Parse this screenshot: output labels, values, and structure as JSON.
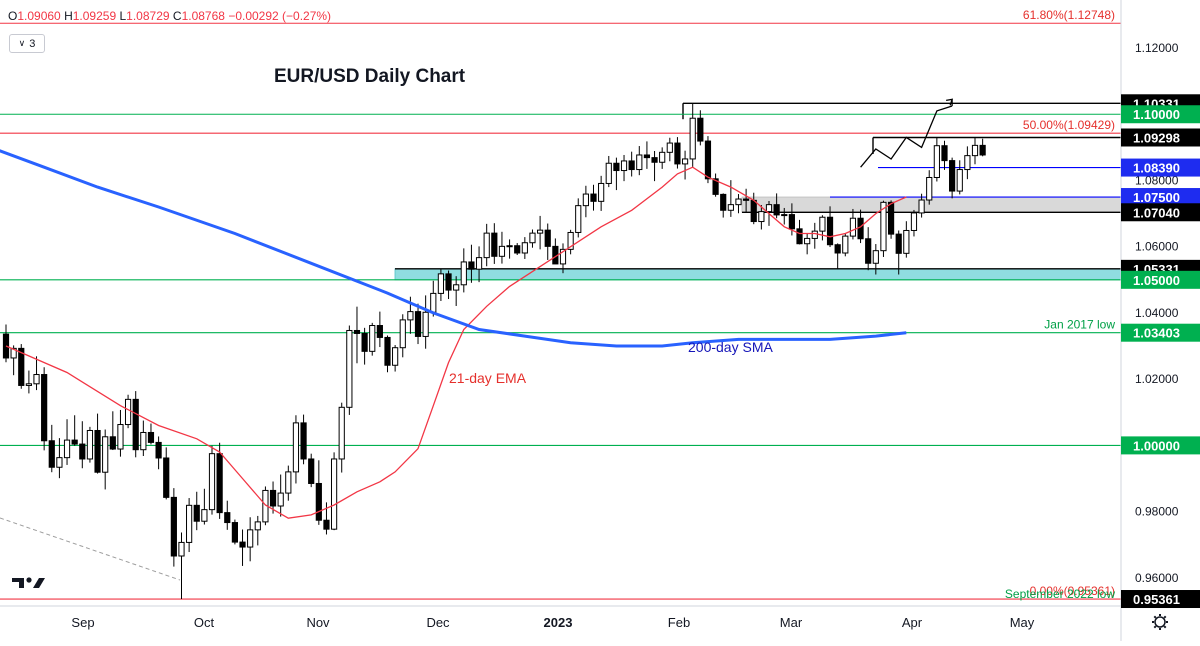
{
  "ohlc": {
    "o_label": "O",
    "o": "1.09060",
    "h_label": "H",
    "h": "1.09259",
    "l_label": "L",
    "l": "1.08729",
    "c_label": "C",
    "c": "1.08768",
    "change": "−0.00292 (−0.27%)"
  },
  "indicator_badge": "3",
  "chart_data": {
    "type": "candlestick",
    "title": "EUR/USD Daily Chart",
    "x_labels": [
      "Sep",
      "Oct",
      "Nov",
      "Dec",
      "2023",
      "Feb",
      "Mar",
      "Apr",
      "May"
    ],
    "y_ticks": [
      "1.12000",
      "1.10000",
      "1.08000",
      "1.06000",
      "1.04000",
      "1.02000",
      "1.00000",
      "0.98000",
      "0.96000"
    ],
    "ylim": [
      0.9515,
      1.1345
    ],
    "horizontal_levels": [
      {
        "value": 1.12748,
        "color": "#f23645",
        "label": "61.80%(1.12748)"
      },
      {
        "value": 1.10331,
        "color": "#000000",
        "box": "1.10331"
      },
      {
        "value": 1.1,
        "color": "#00b050",
        "box": "1.10000"
      },
      {
        "value": 1.09429,
        "color": "#f23645",
        "label": "50.00%(1.09429)"
      },
      {
        "value": 1.09298,
        "color": "#000000",
        "box": "1.09298"
      },
      {
        "value": 1.0839,
        "color": "#0000ff",
        "box": "1.08390"
      },
      {
        "value": 1.075,
        "color": "#0000ff",
        "box": "1.07500"
      },
      {
        "value": 1.0704,
        "color": "#000000",
        "box": "1.07040"
      },
      {
        "value": 1.05331,
        "color": "#000000",
        "box": "1.05331"
      },
      {
        "value": 1.05,
        "color": "#00b050",
        "box": "1.05000"
      },
      {
        "value": 1.03403,
        "color": "#00b050",
        "label": "Jan 2017 low",
        "box": "1.03403"
      },
      {
        "value": 1.0,
        "color": "#00b050",
        "box": "1.00000"
      },
      {
        "value": 0.95361,
        "color": "#f23645",
        "label": "0.00%(0.95361)",
        "box": "0.95361"
      }
    ],
    "bottom_label": "September 2022 low",
    "zones": [
      {
        "from": 1.0704,
        "to": 1.075,
        "color": "#d9d9d9"
      },
      {
        "from": 1.05,
        "to": 1.05331,
        "color": "#8fdde0"
      }
    ],
    "annotations": {
      "ema": "21-day EMA",
      "sma": "200-day SMA"
    },
    "series": [
      {
        "name": "21-day EMA",
        "color": "#f23645",
        "points": [
          [
            0,
            1.03
          ],
          [
            8,
            1.022
          ],
          [
            15,
            1.012
          ],
          [
            20,
            1.006
          ],
          [
            25,
            1.002
          ],
          [
            28,
            0.998
          ],
          [
            31,
            0.99
          ],
          [
            34,
            0.982
          ],
          [
            37,
            0.978
          ],
          [
            40,
            0.979
          ],
          [
            43,
            0.982
          ],
          [
            46,
            0.986
          ],
          [
            49,
            0.989
          ],
          [
            51,
            0.992
          ],
          [
            54,
            0.999
          ],
          [
            56,
            1.012
          ],
          [
            58,
            1.025
          ],
          [
            60,
            1.035
          ],
          [
            63,
            1.042
          ],
          [
            66,
            1.048
          ],
          [
            70,
            1.054
          ],
          [
            74,
            1.06
          ],
          [
            78,
            1.066
          ],
          [
            82,
            1.071
          ],
          [
            86,
            1.078
          ],
          [
            88,
            1.082
          ],
          [
            90,
            1.084
          ],
          [
            92,
            1.081
          ],
          [
            95,
            1.078
          ],
          [
            98,
            1.074
          ],
          [
            100,
            1.07
          ],
          [
            102,
            1.066
          ],
          [
            104,
            1.064
          ],
          [
            106,
            1.064
          ],
          [
            108,
            1.063
          ],
          [
            110,
            1.064
          ],
          [
            112,
            1.066
          ],
          [
            114,
            1.07
          ],
          [
            116,
            1.073
          ],
          [
            118,
            1.075
          ]
        ]
      },
      {
        "name": "200-day SMA",
        "color": "#2962ff",
        "points": [
          [
            -2,
            1.09
          ],
          [
            5,
            1.084
          ],
          [
            12,
            1.078
          ],
          [
            20,
            1.072
          ],
          [
            30,
            1.064
          ],
          [
            40,
            1.055
          ],
          [
            50,
            1.046
          ],
          [
            56,
            1.04
          ],
          [
            62,
            1.035
          ],
          [
            68,
            1.033
          ],
          [
            74,
            1.031
          ],
          [
            80,
            1.03
          ],
          [
            86,
            1.03
          ],
          [
            90,
            1.031
          ],
          [
            96,
            1.032
          ],
          [
            102,
            1.032
          ],
          [
            108,
            1.032
          ],
          [
            114,
            1.033
          ],
          [
            118,
            1.034
          ]
        ]
      }
    ],
    "projection_path": [
      [
        112,
        1.084
      ],
      [
        114,
        1.0895
      ],
      [
        116,
        1.0865
      ],
      [
        118,
        1.093
      ],
      [
        120,
        1.09
      ],
      [
        122,
        1.101
      ],
      [
        124,
        1.1025
      ]
    ],
    "projection_end": [
      124,
      1.1045
    ],
    "ohlc": [
      [
        1.0336,
        1.0365,
        1.0251,
        1.0264
      ],
      [
        1.0264,
        1.0302,
        1.0212,
        1.0293
      ],
      [
        1.0293,
        1.0306,
        1.0171,
        1.0181
      ],
      [
        1.0181,
        1.0226,
        1.0157,
        1.0186
      ],
      [
        1.0186,
        1.0269,
        1.0167,
        1.0214
      ],
      [
        1.0214,
        1.0236,
        0.9985,
        1.0014
      ],
      [
        1.0014,
        1.0062,
        0.9919,
        0.9934
      ],
      [
        0.9934,
        1.0022,
        0.9901,
        0.9963
      ],
      [
        0.9963,
        1.0079,
        0.9941,
        1.0016
      ],
      [
        1.0016,
        1.0091,
        0.9999,
        1.0004
      ],
      [
        1.0004,
        1.0073,
        0.9931,
        0.9959
      ],
      [
        0.9959,
        1.0056,
        0.9948,
        1.0045
      ],
      [
        1.0045,
        1.0096,
        0.9915,
        0.9919
      ],
      [
        0.9919,
        1.0048,
        0.9867,
        1.0026
      ],
      [
        1.0026,
        1.0103,
        0.9986,
        0.9989
      ],
      [
        0.9989,
        1.0107,
        0.9966,
        1.0063
      ],
      [
        1.0063,
        1.0153,
        1.0052,
        1.0139
      ],
      [
        1.0139,
        1.0164,
        0.9964,
        0.9987
      ],
      [
        0.9987,
        1.0075,
        0.9968,
        1.0039
      ],
      [
        1.0039,
        1.0066,
        1.0003,
        1.0009
      ],
      [
        1.0009,
        1.0027,
        0.9928,
        0.9962
      ],
      [
        0.9962,
        0.9994,
        0.9837,
        0.9843
      ],
      [
        0.9843,
        0.9871,
        0.9634,
        0.9666
      ],
      [
        0.9666,
        0.9737,
        0.9536,
        0.9707
      ],
      [
        0.9707,
        0.9841,
        0.9678,
        0.9819
      ],
      [
        0.9819,
        0.986,
        0.9744,
        0.9771
      ],
      [
        0.9771,
        0.9869,
        0.9761,
        0.9806
      ],
      [
        0.9806,
        0.9999,
        0.9791,
        0.9975
      ],
      [
        0.9975,
        1.0008,
        0.9778,
        0.9797
      ],
      [
        0.9797,
        0.9833,
        0.9745,
        0.9767
      ],
      [
        0.9767,
        0.9776,
        0.9701,
        0.9708
      ],
      [
        0.9708,
        0.9746,
        0.9636,
        0.9693
      ],
      [
        0.9693,
        0.9783,
        0.965,
        0.9745
      ],
      [
        0.9745,
        0.9787,
        0.9698,
        0.9769
      ],
      [
        0.9769,
        0.9876,
        0.9759,
        0.9864
      ],
      [
        0.9864,
        0.9891,
        0.9794,
        0.9817
      ],
      [
        0.9817,
        0.9912,
        0.9785,
        0.9856
      ],
      [
        0.9856,
        0.9939,
        0.9833,
        0.992
      ],
      [
        0.992,
        1.0091,
        0.9885,
        1.0068
      ],
      [
        1.0068,
        1.0093,
        0.9943,
        0.9959
      ],
      [
        0.9959,
        0.9975,
        0.9874,
        0.9885
      ],
      [
        0.9885,
        0.9955,
        0.976,
        0.9774
      ],
      [
        0.9774,
        0.9828,
        0.9731,
        0.9747
      ],
      [
        0.9747,
        0.9979,
        0.9744,
        0.9959
      ],
      [
        0.9959,
        1.0129,
        0.9918,
        1.0115
      ],
      [
        1.0115,
        1.0362,
        1.0092,
        1.0347
      ],
      [
        1.0347,
        1.0419,
        1.0248,
        1.0338
      ],
      [
        1.0338,
        1.0355,
        1.0244,
        1.0284
      ],
      [
        1.0284,
        1.037,
        1.0271,
        1.0362
      ],
      [
        1.0362,
        1.0404,
        1.0297,
        1.0326
      ],
      [
        1.0326,
        1.0332,
        1.0221,
        1.0242
      ],
      [
        1.0242,
        1.0303,
        1.0223,
        1.0295
      ],
      [
        1.0295,
        1.0396,
        1.0266,
        1.0379
      ],
      [
        1.0379,
        1.0449,
        1.0337,
        1.0404
      ],
      [
        1.0404,
        1.0428,
        1.0306,
        1.0329
      ],
      [
        1.0329,
        1.0453,
        1.0292,
        1.0402
      ],
      [
        1.0402,
        1.0497,
        1.0389,
        1.0459
      ],
      [
        1.0459,
        1.0534,
        1.0436,
        1.0518
      ],
      [
        1.0518,
        1.0528,
        1.0442,
        1.0469
      ],
      [
        1.0469,
        1.0511,
        1.0421,
        1.0485
      ],
      [
        1.0485,
        1.0595,
        1.0462,
        1.0554
      ],
      [
        1.0554,
        1.0606,
        1.0491,
        1.0532
      ],
      [
        1.0532,
        1.0601,
        1.0493,
        1.0567
      ],
      [
        1.0567,
        1.0669,
        1.0541,
        1.0641
      ],
      [
        1.0641,
        1.0671,
        1.0548,
        1.0571
      ],
      [
        1.0571,
        1.0645,
        1.0549,
        1.0601
      ],
      [
        1.0601,
        1.0622,
        1.0564,
        1.0603
      ],
      [
        1.0603,
        1.0611,
        1.0575,
        1.0581
      ],
      [
        1.0581,
        1.0629,
        1.0563,
        1.0612
      ],
      [
        1.0612,
        1.0652,
        1.0597,
        1.0641
      ],
      [
        1.0641,
        1.0693,
        1.0592,
        1.065
      ],
      [
        1.065,
        1.067,
        1.056,
        1.0601
      ],
      [
        1.0601,
        1.0625,
        1.0548,
        1.0548
      ],
      [
        1.0548,
        1.061,
        1.052,
        1.0592
      ],
      [
        1.0592,
        1.0651,
        1.0577,
        1.0643
      ],
      [
        1.0643,
        1.0746,
        1.0628,
        1.0724
      ],
      [
        1.0724,
        1.0784,
        1.0689,
        1.0759
      ],
      [
        1.0759,
        1.0787,
        1.0709,
        1.0737
      ],
      [
        1.0737,
        1.0814,
        1.0708,
        1.0791
      ],
      [
        1.0791,
        1.0874,
        1.078,
        1.0852
      ],
      [
        1.0852,
        1.0869,
        1.0771,
        1.083
      ],
      [
        1.083,
        1.0877,
        1.0798,
        1.0859
      ],
      [
        1.0859,
        1.0887,
        1.0812,
        1.0833
      ],
      [
        1.0833,
        1.0904,
        1.0816,
        1.0877
      ],
      [
        1.0877,
        1.0918,
        1.0835,
        1.0869
      ],
      [
        1.0869,
        1.0889,
        1.0798,
        1.0855
      ],
      [
        1.0855,
        1.09,
        1.0835,
        1.0885
      ],
      [
        1.0885,
        1.0929,
        1.0858,
        1.0913
      ],
      [
        1.0913,
        1.0931,
        1.0836,
        1.085
      ],
      [
        1.085,
        1.089,
        1.0803,
        1.0865
      ],
      [
        1.0865,
        1.1033,
        1.0839,
        1.0988
      ],
      [
        1.0988,
        1.1012,
        1.0906,
        1.0919
      ],
      [
        1.0919,
        1.0934,
        1.0792,
        1.0805
      ],
      [
        1.0805,
        1.0821,
        1.0751,
        1.0758
      ],
      [
        1.0758,
        1.0761,
        1.0688,
        1.071
      ],
      [
        1.071,
        1.0801,
        1.069,
        1.0727
      ],
      [
        1.0727,
        1.0759,
        1.0701,
        1.0744
      ],
      [
        1.0744,
        1.0775,
        1.0705,
        1.074
      ],
      [
        1.074,
        1.0763,
        1.0668,
        1.0676
      ],
      [
        1.0676,
        1.0726,
        1.0652,
        1.0706
      ],
      [
        1.0706,
        1.0738,
        1.0663,
        1.0727
      ],
      [
        1.0727,
        1.0761,
        1.0686,
        1.0696
      ],
      [
        1.0696,
        1.0717,
        1.0667,
        1.0697
      ],
      [
        1.0697,
        1.0731,
        1.0634,
        1.0654
      ],
      [
        1.0654,
        1.0681,
        1.0607,
        1.0609
      ],
      [
        1.0609,
        1.0641,
        1.0577,
        1.0625
      ],
      [
        1.0625,
        1.0672,
        1.0594,
        1.0647
      ],
      [
        1.0647,
        1.0695,
        1.0619,
        1.0689
      ],
      [
        1.0689,
        1.0722,
        1.0599,
        1.0606
      ],
      [
        1.0606,
        1.061,
        1.0533,
        1.0581
      ],
      [
        1.0581,
        1.0641,
        1.0571,
        1.0632
      ],
      [
        1.0632,
        1.0714,
        1.0622,
        1.0686
      ],
      [
        1.0686,
        1.0712,
        1.0611,
        1.0624
      ],
      [
        1.0624,
        1.0659,
        1.0529,
        1.055
      ],
      [
        1.055,
        1.0608,
        1.0516,
        1.0588
      ],
      [
        1.0588,
        1.0739,
        1.0569,
        1.0734
      ],
      [
        1.0734,
        1.074,
        1.0624,
        1.0638
      ],
      [
        1.0638,
        1.0649,
        1.0516,
        1.058
      ],
      [
        1.058,
        1.0677,
        1.0567,
        1.0649
      ],
      [
        1.0649,
        1.0711,
        1.0631,
        1.0702
      ],
      [
        1.0702,
        1.076,
        1.0688,
        1.0741
      ],
      [
        1.0741,
        1.0831,
        1.0727,
        1.0809
      ],
      [
        1.0809,
        1.093,
        1.0797,
        1.0905
      ],
      [
        1.0905,
        1.092,
        1.0832,
        1.086
      ],
      [
        1.086,
        1.0869,
        1.0746,
        1.0768
      ],
      [
        1.0768,
        1.0861,
        1.0758,
        1.0833
      ],
      [
        1.0833,
        1.0903,
        1.0804,
        1.0875
      ],
      [
        1.0875,
        1.0929,
        1.0849,
        1.0906
      ],
      [
        1.0906,
        1.0926,
        1.0873,
        1.0877
      ]
    ]
  }
}
